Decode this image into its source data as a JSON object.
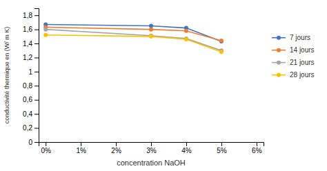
{
  "chart_data": {
    "type": "line",
    "xlabel": "concentration NaOH",
    "ylabel": "conductivité thermique en (W/ m K)",
    "x": [
      0,
      0.03,
      0.04,
      0.05
    ],
    "series": [
      {
        "name": "7 jours",
        "color": "#4472C4",
        "values": [
          1.67,
          1.65,
          1.62,
          1.43
        ]
      },
      {
        "name": "14 jours",
        "color": "#ED7D31",
        "values": [
          1.63,
          1.6,
          1.58,
          1.44
        ]
      },
      {
        "name": "21 jours",
        "color": "#A5A5A5",
        "values": [
          1.6,
          1.51,
          1.47,
          1.3
        ]
      },
      {
        "name": "28 jours",
        "color": "#FFC000",
        "values": [
          1.52,
          1.5,
          1.46,
          1.28
        ]
      }
    ],
    "xlim": [
      -0.002,
      0.062
    ],
    "ylim": [
      0,
      1.9
    ],
    "xticks": [
      {
        "value": 0,
        "label": "0%"
      },
      {
        "value": 0.01,
        "label": "1%"
      },
      {
        "value": 0.02,
        "label": "2%"
      },
      {
        "value": 0.03,
        "label": "3%"
      },
      {
        "value": 0.04,
        "label": "4%"
      },
      {
        "value": 0.05,
        "label": "5%"
      },
      {
        "value": 0.06,
        "label": "6%"
      }
    ],
    "yticks": [
      0,
      {
        "value": 0.2,
        "label": "0,2"
      },
      {
        "value": 0.4,
        "label": "0,4"
      },
      {
        "value": 0.6,
        "label": "0,6"
      },
      {
        "value": 0.8,
        "label": "0,8"
      },
      1,
      {
        "value": 1.2,
        "label": "1,2"
      },
      {
        "value": 1.4,
        "label": "1,4"
      },
      {
        "value": 1.6,
        "label": "1,6"
      },
      {
        "value": 1.8,
        "label": "1,8"
      }
    ],
    "marker": "circle",
    "legend": "right",
    "grid": false
  }
}
